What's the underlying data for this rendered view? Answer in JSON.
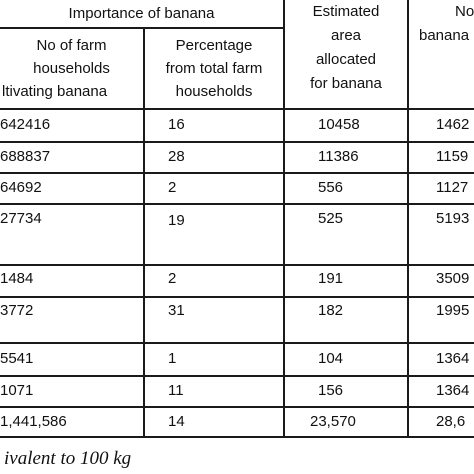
{
  "header": {
    "group_title": "Importance of banana",
    "col1": [
      "No of farm",
      "households",
      "ltivating banana"
    ],
    "col2": [
      "Percentage",
      "from total farm",
      "households"
    ],
    "col3": [
      "Estimated",
      "area",
      "allocated",
      "for banana"
    ],
    "col4": [
      "No",
      "banana"
    ]
  },
  "rows": [
    {
      "households": "642416",
      "percent": "16",
      "area": "10458",
      "col4": "1462"
    },
    {
      "households": "688837",
      "percent": "28",
      "area": "11386",
      "col4": "1159"
    },
    {
      "households": "64692",
      "percent": "2",
      "area": "556",
      "col4": "1127"
    },
    {
      "households": "27734",
      "percent": "19",
      "area": "525",
      "col4": "5193"
    },
    {
      "households": "1484",
      "percent": "2",
      "area": "191",
      "col4": "3509"
    },
    {
      "households": "3772",
      "percent": "31",
      "area": "182",
      "col4": "1995"
    },
    {
      "households": "5541",
      "percent": "1",
      "area": "104",
      "col4": "1364"
    },
    {
      "households": "1071",
      "percent": "11",
      "area": "156",
      "col4": "1364"
    },
    {
      "households": "1,441,586",
      "percent": "14",
      "area": "23,570",
      "col4": "28,6"
    }
  ],
  "footnote": "ivalent to 100 kg"
}
